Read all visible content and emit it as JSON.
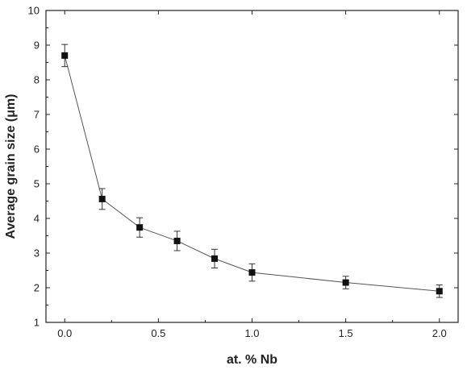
{
  "chart_data": {
    "type": "scatter",
    "xlabel": "at. % Nb",
    "ylabel": "Average grain size (μm)",
    "xlim": [
      -0.1,
      2.1
    ],
    "ylim": [
      1,
      10
    ],
    "xticks": [
      0.0,
      0.5,
      1.0,
      1.5,
      2.0
    ],
    "xtick_labels": [
      "0.0",
      "0.5",
      "1.0",
      "1.5",
      "2.0"
    ],
    "yticks": [
      1,
      2,
      3,
      4,
      5,
      6,
      7,
      8,
      9,
      10
    ],
    "ytick_labels": [
      "1",
      "2",
      "3",
      "4",
      "5",
      "6",
      "7",
      "8",
      "9",
      "10"
    ],
    "grid": false,
    "marker": "square",
    "connected": true,
    "series": [
      {
        "x": [
          0.0,
          0.2,
          0.4,
          0.6,
          0.8,
          1.0,
          1.5,
          2.0
        ],
        "y": [
          8.7,
          4.56,
          3.74,
          3.35,
          2.84,
          2.44,
          2.15,
          1.9
        ],
        "error": [
          0.32,
          0.3,
          0.28,
          0.28,
          0.27,
          0.25,
          0.18,
          0.18
        ],
        "color": "#111111"
      }
    ]
  }
}
